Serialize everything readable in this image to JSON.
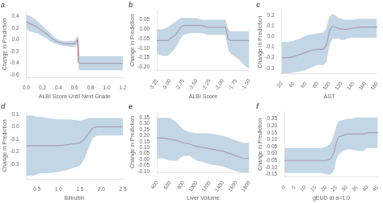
{
  "chart_data": [
    {
      "type": "line",
      "title": "a",
      "xlabel": "ALBI Score Until Next Grade",
      "ylabel": "Change in Prediction",
      "xlim": [
        0.0,
        1.2
      ],
      "ylim": [
        -0.65,
        0.5
      ],
      "xticks": [
        {
          "value": 0,
          "label": "0.0"
        },
        0.2,
        0.4,
        0.6,
        0.8,
        {
          "value": 1,
          "label": "1.0"
        },
        1.2
      ],
      "yticks": [
        0.4,
        0.2,
        {
          "value": 0,
          "label": "0.0"
        },
        -0.2,
        -0.4,
        -0.6
      ],
      "grid": false,
      "x": [
        0.0,
        0.05,
        0.1,
        0.15,
        0.2,
        0.25,
        0.3,
        0.35,
        0.4,
        0.45,
        0.5,
        0.55,
        0.6,
        0.62,
        0.64,
        0.65,
        0.67,
        0.7,
        0.8,
        0.9,
        1.0,
        1.1,
        1.2
      ],
      "series": [
        {
          "type": "band",
          "color": "#aec8dc",
          "upper": [
            0.43,
            0.4,
            0.36,
            0.3,
            0.24,
            0.17,
            0.11,
            0.04,
            0.0,
            -0.02,
            -0.03,
            -0.02,
            -0.02,
            0.04,
            0.06,
            -0.26,
            -0.28,
            -0.28,
            -0.28,
            -0.28,
            -0.28,
            -0.28,
            -0.28
          ],
          "lower": [
            0.18,
            0.14,
            0.12,
            0.1,
            0.06,
            0.03,
            -0.03,
            -0.06,
            -0.08,
            -0.1,
            -0.11,
            -0.12,
            -0.12,
            -0.1,
            -0.08,
            -0.51,
            -0.52,
            -0.52,
            -0.52,
            -0.52,
            -0.52,
            -0.52,
            -0.52
          ]
        },
        {
          "type": "line",
          "color": "#9b2335",
          "values": [
            0.3,
            0.27,
            0.24,
            0.2,
            0.15,
            0.1,
            0.04,
            -0.01,
            -0.04,
            -0.06,
            -0.07,
            -0.07,
            -0.07,
            -0.03,
            0.0,
            -0.38,
            -0.4,
            -0.4,
            -0.4,
            -0.4,
            -0.4,
            -0.4,
            -0.4
          ]
        }
      ]
    },
    {
      "type": "line",
      "title": "b",
      "xlabel": "ALBI Score",
      "ylabel": "Change in Prediction",
      "xlim": [
        -3.25,
        -1.5
      ],
      "ylim": [
        -0.22,
        0.1
      ],
      "xticks": [
        -3.25,
        {
          "value": -3,
          "label": "-3.00"
        },
        -2.75,
        {
          "value": -2.5,
          "label": "-2.50"
        },
        -2.25,
        {
          "value": -2,
          "label": "-2.00"
        },
        -1.75,
        {
          "value": -1.5,
          "label": "-1.50"
        }
      ],
      "yticks": [
        0.05,
        {
          "value": 0,
          "label": "0.00"
        },
        -0.05,
        {
          "value": -0.1,
          "label": "-0.10"
        },
        -0.15,
        {
          "value": -0.2,
          "label": "-0.20"
        }
      ],
      "grid": false,
      "x": [
        -3.25,
        -3.15,
        -3.05,
        -3.0,
        -2.9,
        -2.8,
        -2.75,
        -2.6,
        -2.5,
        -2.4,
        -2.3,
        -2.2,
        -2.1,
        -2.0,
        -1.98,
        -1.95,
        -1.9,
        -1.85,
        -1.8,
        -1.7,
        -1.6,
        -1.5
      ],
      "series": [
        {
          "type": "band",
          "color": "#aec8dc",
          "upper": [
            0.0,
            0.0,
            0.01,
            0.02,
            0.04,
            0.06,
            0.06,
            0.06,
            0.06,
            0.05,
            0.05,
            0.05,
            0.05,
            0.05,
            0.05,
            0.05,
            0.0,
            -0.01,
            -0.01,
            -0.01,
            -0.01,
            -0.01
          ],
          "lower": [
            -0.13,
            -0.14,
            -0.14,
            -0.13,
            -0.1,
            -0.05,
            -0.03,
            -0.02,
            -0.02,
            -0.02,
            -0.03,
            -0.03,
            -0.03,
            -0.03,
            -0.03,
            -0.03,
            -0.11,
            -0.13,
            -0.14,
            -0.16,
            -0.19,
            -0.21
          ]
        },
        {
          "type": "line",
          "color": "#9b2335",
          "values": [
            -0.06,
            -0.06,
            -0.06,
            -0.05,
            -0.03,
            0.01,
            0.02,
            0.02,
            0.02,
            0.02,
            0.01,
            0.01,
            0.01,
            0.01,
            0.01,
            0.01,
            -0.05,
            -0.06,
            -0.06,
            -0.06,
            -0.06,
            -0.06
          ]
        }
      ]
    },
    {
      "type": "line",
      "title": "c",
      "xlabel": "AST",
      "ylabel": "Change in Prediction",
      "xlim": [
        20,
        180
      ],
      "ylim": [
        -0.35,
        0.25
      ],
      "xticks": [
        20,
        40,
        60,
        80,
        100,
        120,
        140,
        160,
        180
      ],
      "yticks": [
        0.2,
        0.1,
        {
          "value": 0,
          "label": "0.0"
        },
        -0.1,
        -0.2,
        -0.3
      ],
      "grid": false,
      "x": [
        20,
        30,
        40,
        50,
        60,
        70,
        80,
        90,
        95,
        100,
        105,
        110,
        115,
        120,
        125,
        130,
        140,
        150,
        160,
        170,
        180
      ],
      "series": [
        {
          "type": "band",
          "color": "#aec8dc",
          "upper": [
            -0.05,
            -0.05,
            -0.04,
            -0.02,
            0.01,
            0.02,
            0.03,
            0.04,
            0.08,
            0.19,
            0.22,
            0.2,
            0.18,
            0.17,
            0.16,
            0.16,
            0.16,
            0.17,
            0.17,
            0.17,
            0.17
          ],
          "lower": [
            -0.35,
            -0.35,
            -0.34,
            -0.33,
            -0.32,
            -0.29,
            -0.27,
            -0.27,
            -0.24,
            -0.09,
            -0.02,
            -0.02,
            -0.02,
            -0.03,
            -0.03,
            -0.02,
            -0.01,
            -0.01,
            -0.01,
            -0.01,
            -0.01
          ]
        },
        {
          "type": "line",
          "color": "#9b2335",
          "values": [
            -0.2,
            -0.2,
            -0.19,
            -0.17,
            -0.15,
            -0.13,
            -0.12,
            -0.12,
            -0.08,
            0.05,
            0.1,
            0.09,
            0.08,
            0.07,
            0.07,
            0.07,
            0.08,
            0.09,
            0.09,
            0.09,
            0.09
          ]
        }
      ]
    },
    {
      "type": "line",
      "title": "d",
      "xlabel": "Bilirubin",
      "ylabel": "Change in Prediction",
      "xlim": [
        0.25,
        2.5
      ],
      "ylim": [
        -0.42,
        0.12
      ],
      "xticks": [
        0.5,
        {
          "value": 1,
          "label": "1.0"
        },
        1.5,
        {
          "value": 2,
          "label": "2.0"
        },
        2.5
      ],
      "yticks": [
        0.1,
        {
          "value": 0,
          "label": "0.0"
        },
        -0.1,
        -0.2,
        -0.3
      ],
      "grid": false,
      "x": [
        0.25,
        0.4,
        0.5,
        0.6,
        0.75,
        1.0,
        1.25,
        1.5,
        1.6,
        1.7,
        1.8,
        1.9,
        2.0,
        2.1,
        2.2,
        2.3,
        2.4,
        2.5
      ],
      "series": [
        {
          "type": "band",
          "color": "#aec8dc",
          "upper": [
            0.09,
            0.09,
            0.08,
            0.08,
            0.07,
            0.06,
            0.06,
            0.05,
            0.06,
            0.07,
            0.07,
            0.07,
            0.07,
            0.07,
            0.07,
            0.07,
            0.07,
            0.07
          ],
          "lower": [
            -0.39,
            -0.39,
            -0.38,
            -0.37,
            -0.37,
            -0.36,
            -0.34,
            -0.31,
            -0.26,
            -0.17,
            -0.09,
            -0.07,
            -0.07,
            -0.07,
            -0.07,
            -0.07,
            -0.07,
            -0.07
          ]
        },
        {
          "type": "line",
          "color": "#9b2335",
          "values": [
            -0.15,
            -0.15,
            -0.15,
            -0.15,
            -0.15,
            -0.15,
            -0.14,
            -0.13,
            -0.1,
            -0.05,
            -0.01,
            0.0,
            0.0,
            0.0,
            0.0,
            0.0,
            0.0,
            0.0
          ]
        }
      ]
    },
    {
      "type": "line",
      "title": "e",
      "xlabel": "Liver Volume",
      "ylabel": "Change in Prediction",
      "xlim": [
        400,
        1800
      ],
      "ylim": [
        -0.11,
        0.4
      ],
      "xticks": [
        400,
        600,
        800,
        1000,
        1200,
        1400,
        1600,
        1800
      ],
      "yticks": [
        0.35,
        {
          "value": 0.3,
          "label": "0.30"
        },
        0.25,
        {
          "value": 0.2,
          "label": "0.20"
        },
        0.15,
        {
          "value": 0.1,
          "label": "0.10"
        },
        0.05,
        {
          "value": 0,
          "label": "0.00"
        },
        -0.05,
        {
          "value": -0.1,
          "label": "-0.10"
        }
      ],
      "grid": false,
      "x": [
        400,
        500,
        600,
        700,
        800,
        900,
        1000,
        1100,
        1200,
        1300,
        1400,
        1500,
        1600,
        1700,
        1800
      ],
      "series": [
        {
          "type": "band",
          "color": "#aec8dc",
          "upper": [
            0.35,
            0.35,
            0.35,
            0.31,
            0.25,
            0.23,
            0.22,
            0.22,
            0.22,
            0.21,
            0.2,
            0.18,
            0.16,
            0.14,
            0.14
          ],
          "lower": [
            0.01,
            0.01,
            -0.01,
            -0.01,
            0.03,
            0.03,
            -0.01,
            -0.02,
            -0.04,
            -0.05,
            -0.06,
            -0.08,
            -0.1,
            -0.11,
            -0.11
          ]
        },
        {
          "type": "line",
          "color": "#9b2335",
          "values": [
            0.18,
            0.18,
            0.17,
            0.16,
            0.14,
            0.13,
            0.11,
            0.1,
            0.09,
            0.08,
            0.07,
            0.05,
            0.03,
            0.01,
            0.01
          ]
        }
      ]
    },
    {
      "type": "line",
      "title": "f",
      "xlabel": "gEUD at a=1.0",
      "ylabel": "Change in Prediction",
      "xlim": [
        0,
        45
      ],
      "ylim": [
        -0.17,
        0.3
      ],
      "xticks": [
        0,
        5,
        10,
        15,
        20,
        25,
        30,
        35,
        40,
        45
      ],
      "yticks": [
        0.25,
        {
          "value": 0.2,
          "label": "0.20"
        },
        0.15,
        {
          "value": 0.1,
          "label": "0.10"
        },
        0.05,
        {
          "value": 0,
          "label": "0.00"
        },
        -0.05,
        {
          "value": -0.1,
          "label": "-0.10"
        },
        -0.15
      ],
      "grid": false,
      "x": [
        0,
        2,
        5,
        8,
        10,
        15,
        18,
        20,
        22,
        23,
        24,
        25,
        26,
        28,
        30,
        32,
        35,
        38,
        40,
        42,
        45
      ],
      "series": [
        {
          "type": "band",
          "color": "#aec8dc",
          "upper": [
            0.04,
            0.04,
            0.04,
            0.04,
            0.04,
            0.04,
            0.04,
            0.05,
            0.07,
            0.1,
            0.15,
            0.2,
            0.23,
            0.24,
            0.25,
            0.25,
            0.26,
            0.26,
            0.26,
            0.26,
            0.26
          ],
          "lower": [
            -0.14,
            -0.14,
            -0.14,
            -0.14,
            -0.14,
            -0.14,
            -0.14,
            -0.15,
            -0.15,
            -0.14,
            -0.11,
            -0.04,
            -0.01,
            0.02,
            0.03,
            0.03,
            0.02,
            0.02,
            0.04,
            0.04,
            0.04
          ]
        },
        {
          "type": "line",
          "color": "#9b2335",
          "values": [
            -0.05,
            -0.05,
            -0.05,
            -0.05,
            -0.05,
            -0.05,
            -0.05,
            -0.05,
            -0.04,
            -0.02,
            0.02,
            0.08,
            0.12,
            0.13,
            0.14,
            0.14,
            0.14,
            0.14,
            0.15,
            0.15,
            0.15
          ]
        }
      ]
    }
  ]
}
